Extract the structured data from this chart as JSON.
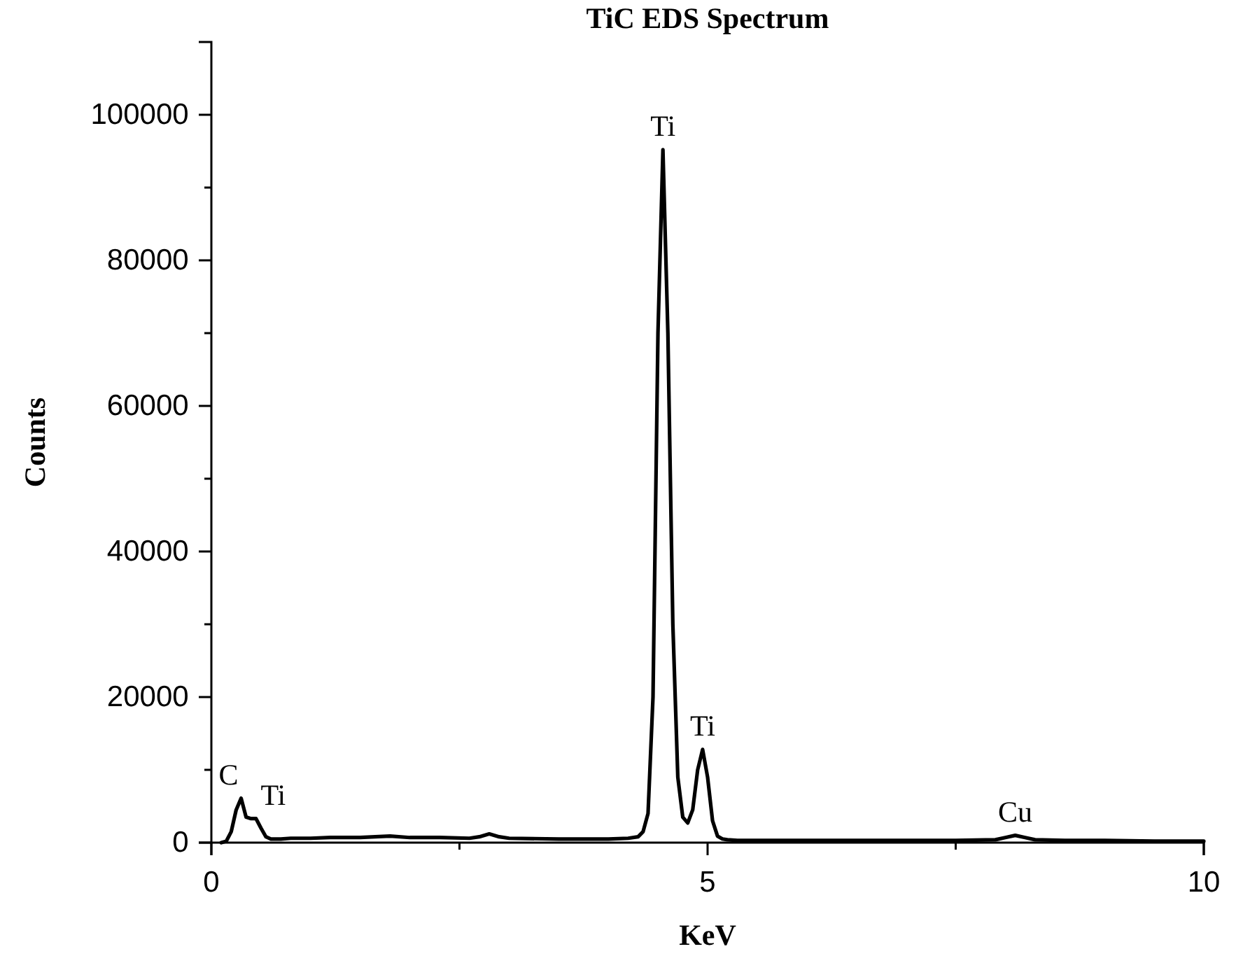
{
  "chart_data": {
    "type": "line",
    "title": "TiC EDS Spectrum",
    "xlabel": "KeV",
    "ylabel": "Counts",
    "xlim": [
      0,
      10
    ],
    "xticks": [
      0,
      5,
      10,
      {
        "value": 2.5,
        "label": null
      },
      {
        "value": 7.5,
        "label": null
      }
    ],
    "ylim": [
      0,
      110000
    ],
    "yticks": [
      0,
      20000,
      40000,
      60000,
      80000,
      100000,
      {
        "value": 10000,
        "label": null
      },
      {
        "value": 30000,
        "label": null
      },
      {
        "value": 50000,
        "label": null
      },
      {
        "value": 70000,
        "label": null
      },
      {
        "value": 90000,
        "label": null
      }
    ],
    "grid": false,
    "marker": "none",
    "line_style": "solid",
    "series": [
      {
        "color": "#000000",
        "x": [
          0.1,
          0.15,
          0.2,
          0.25,
          0.3,
          0.35,
          0.4,
          0.45,
          0.5,
          0.55,
          0.6,
          0.7,
          0.8,
          1.0,
          1.2,
          1.5,
          1.8,
          2.0,
          2.3,
          2.6,
          2.7,
          2.8,
          2.9,
          3.0,
          3.5,
          4.0,
          4.2,
          4.3,
          4.35,
          4.4,
          4.45,
          4.5,
          4.55,
          4.6,
          4.65,
          4.7,
          4.75,
          4.8,
          4.85,
          4.9,
          4.95,
          5.0,
          5.05,
          5.1,
          5.15,
          5.2,
          5.3,
          5.5,
          6,
          6.5,
          7,
          7.5,
          7.9,
          8.0,
          8.1,
          8.2,
          8.3,
          8.6,
          9,
          9.5,
          10
        ],
        "values": [
          0,
          200,
          1500,
          4500,
          6100,
          3500,
          3300,
          3300,
          2000,
          800,
          500,
          500,
          600,
          600,
          700,
          700,
          900,
          700,
          700,
          600,
          800,
          1200,
          800,
          600,
          500,
          500,
          600,
          800,
          1500,
          4000,
          20000,
          70000,
          95200,
          70000,
          30000,
          9000,
          3500,
          2700,
          4500,
          10000,
          12800,
          9000,
          3000,
          900,
          500,
          400,
          300,
          300,
          300,
          300,
          300,
          300,
          400,
          700,
          1000,
          700,
          400,
          300,
          300,
          200,
          200
        ]
      }
    ],
    "annotations": [
      {
        "text": "C",
        "x": 0.3,
        "y": 6100
      },
      {
        "text": "Ti",
        "x": 0.44,
        "y": 3300
      },
      {
        "text": "Ti",
        "x": 4.55,
        "y": 95200
      },
      {
        "text": "Ti",
        "x": 4.95,
        "y": 12800
      },
      {
        "text": "Cu",
        "x": 8.1,
        "y": 1000
      }
    ]
  }
}
